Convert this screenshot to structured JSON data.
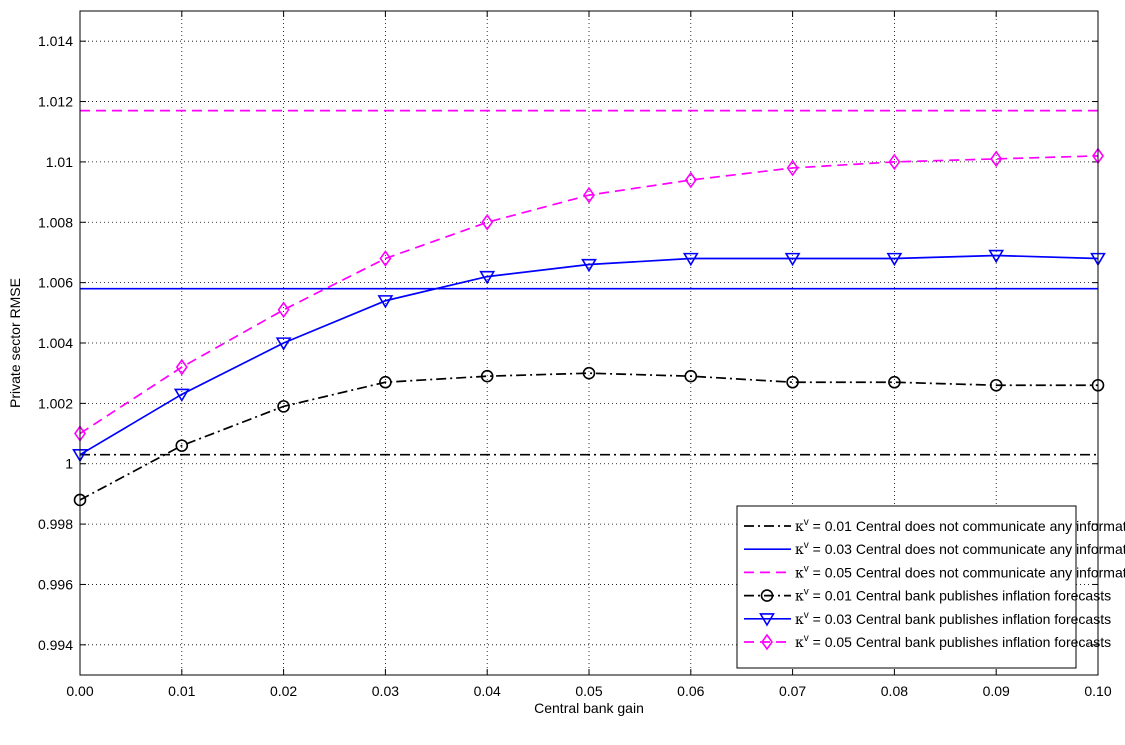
{
  "chart_data": {
    "type": "line",
    "title": "",
    "xlabel": "Central bank gain",
    "ylabel": "Private sector RMSE",
    "xlim": [
      0,
      0.1
    ],
    "ylim": [
      0.993,
      1.015
    ],
    "grid": true,
    "legend_position": "bottom-right",
    "x_ticks": [
      {
        "value": 0.0,
        "label": "0.00"
      },
      {
        "value": 0.01,
        "label": "0.01"
      },
      {
        "value": 0.02,
        "label": "0.02"
      },
      {
        "value": 0.03,
        "label": "0.03"
      },
      {
        "value": 0.04,
        "label": "0.04"
      },
      {
        "value": 0.05,
        "label": "0.05"
      },
      {
        "value": 0.06,
        "label": "0.06"
      },
      {
        "value": 0.07,
        "label": "0.07"
      },
      {
        "value": 0.08,
        "label": "0.08"
      },
      {
        "value": 0.09,
        "label": "0.09"
      },
      {
        "value": 0.1,
        "label": "0.10"
      }
    ],
    "y_ticks": [
      {
        "value": 0.994,
        "label": "0.994"
      },
      {
        "value": 0.996,
        "label": "0.996"
      },
      {
        "value": 0.998,
        "label": "0.998"
      },
      {
        "value": 1.0,
        "label": "1"
      },
      {
        "value": 1.002,
        "label": "1.002"
      },
      {
        "value": 1.004,
        "label": "1.004"
      },
      {
        "value": 1.006,
        "label": "1.006"
      },
      {
        "value": 1.008,
        "label": "1.008"
      },
      {
        "value": 1.01,
        "label": "1.01"
      },
      {
        "value": 1.012,
        "label": "1.012"
      },
      {
        "value": 1.014,
        "label": "1.014"
      }
    ],
    "x": [
      0.0,
      0.01,
      0.02,
      0.03,
      0.04,
      0.05,
      0.06,
      0.07,
      0.08,
      0.09,
      0.1
    ],
    "series": [
      {
        "kappa": "0.01",
        "description": "Central does not communicate any information",
        "color": "#000000",
        "dash": "dashdot",
        "marker": "none",
        "values": [
          1.0003,
          1.0003,
          1.0003,
          1.0003,
          1.0003,
          1.0003,
          1.0003,
          1.0003,
          1.0003,
          1.0003,
          1.0003
        ]
      },
      {
        "kappa": "0.03",
        "description": "Central does not communicate any information",
        "color": "#0000ff",
        "dash": "solid",
        "marker": "none",
        "values": [
          1.0058,
          1.0058,
          1.0058,
          1.0058,
          1.0058,
          1.0058,
          1.0058,
          1.0058,
          1.0058,
          1.0058,
          1.0058
        ]
      },
      {
        "kappa": "0.05",
        "description": "Central does not communicate any information",
        "color": "#ff00ff",
        "dash": "dashed",
        "marker": "none",
        "values": [
          1.0117,
          1.0117,
          1.0117,
          1.0117,
          1.0117,
          1.0117,
          1.0117,
          1.0117,
          1.0117,
          1.0117,
          1.0117
        ]
      },
      {
        "kappa": "0.01",
        "description": "Central bank publishes inflation forecasts",
        "color": "#000000",
        "dash": "dashdot",
        "marker": "circle",
        "values": [
          0.9988,
          1.0006,
          1.0019,
          1.0027,
          1.0029,
          1.003,
          1.0029,
          1.0027,
          1.0027,
          1.0026,
          1.0026
        ]
      },
      {
        "kappa": "0.03",
        "description": "Central bank publishes inflation forecasts",
        "color": "#0000ff",
        "dash": "solid",
        "marker": "triangle-down",
        "values": [
          1.0003,
          1.0023,
          1.004,
          1.0054,
          1.0062,
          1.0066,
          1.0068,
          1.0068,
          1.0068,
          1.0069,
          1.0068
        ]
      },
      {
        "kappa": "0.05",
        "description": "Central bank publishes inflation forecasts",
        "color": "#ff00ff",
        "dash": "dashed",
        "marker": "diamond",
        "values": [
          1.001,
          1.0032,
          1.0051,
          1.0068,
          1.008,
          1.0089,
          1.0094,
          1.0098,
          1.01,
          1.0101,
          1.0102
        ]
      }
    ],
    "legend_symbol": "κ",
    "legend_superscript": "v",
    "legend_equals": " = "
  }
}
